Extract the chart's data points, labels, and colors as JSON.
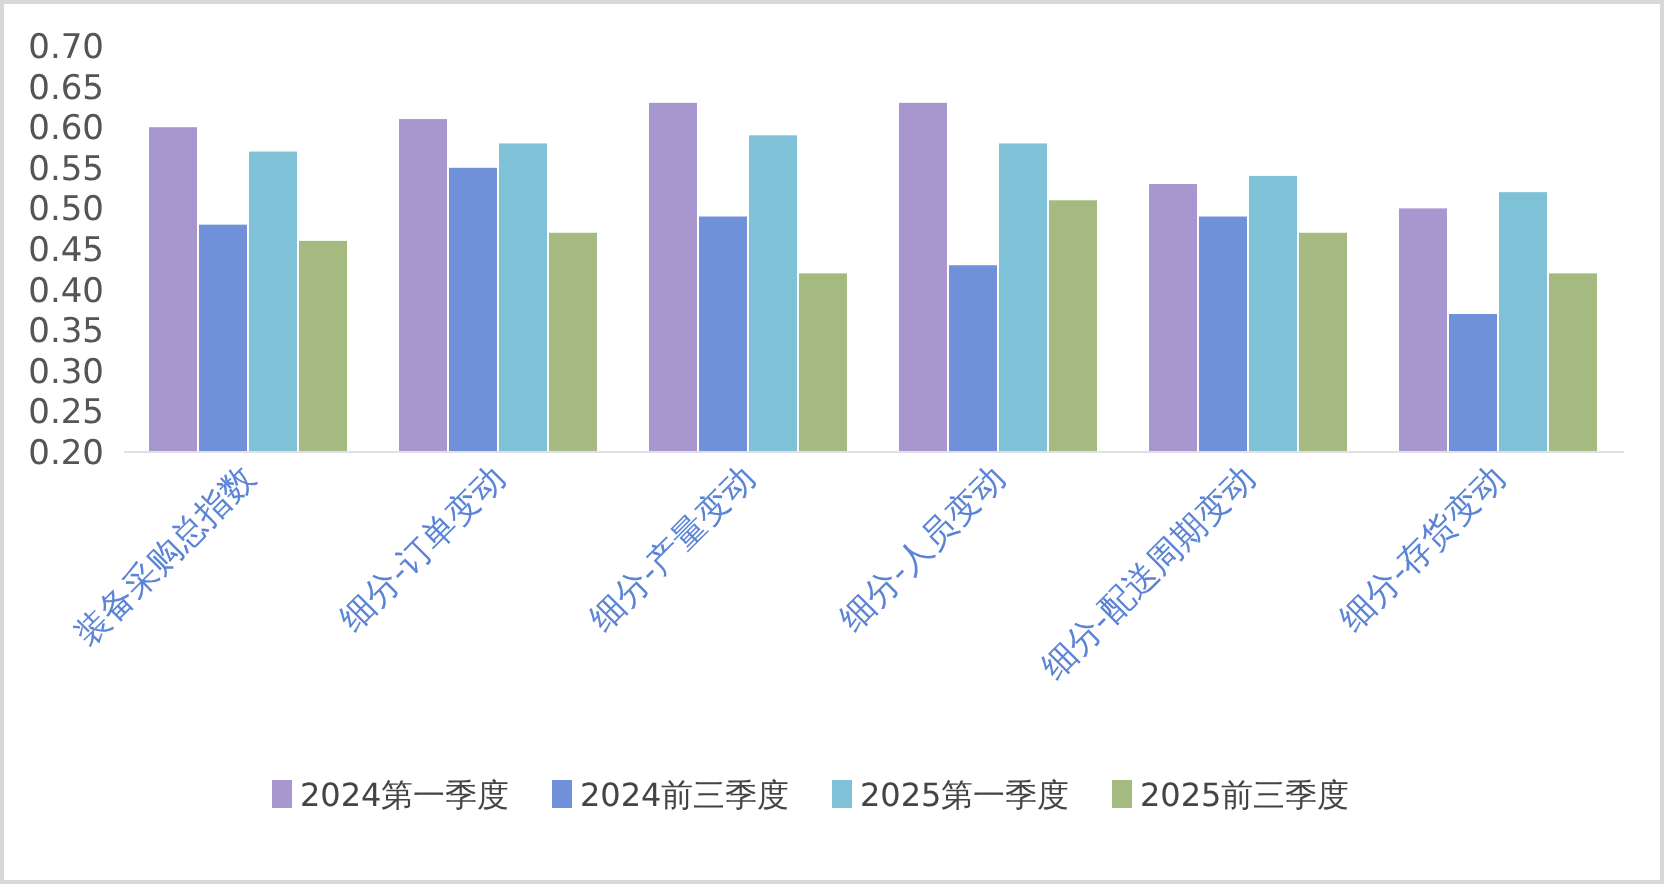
{
  "chart_data": {
    "type": "bar",
    "categories": [
      "装备采购总指数",
      "细分-订单变动",
      "细分-产量变动",
      "细分-人员变动",
      "细分-配送周期变动",
      "细分-存货变动"
    ],
    "series": [
      {
        "name": "2024第一季度",
        "color": "#a896cf",
        "values": [
          0.6,
          0.61,
          0.63,
          0.63,
          0.53,
          0.5
        ]
      },
      {
        "name": "2024前三季度",
        "color": "#7091d9",
        "values": [
          0.48,
          0.55,
          0.49,
          0.43,
          0.49,
          0.37
        ]
      },
      {
        "name": "2025第一季度",
        "color": "#7fc1d6",
        "values": [
          0.57,
          0.58,
          0.59,
          0.58,
          0.54,
          0.52
        ]
      },
      {
        "name": "2025前三季度",
        "color": "#a5ba80",
        "values": [
          0.46,
          0.47,
          0.42,
          0.51,
          0.47,
          0.42
        ]
      }
    ],
    "ylim": [
      0.2,
      0.7
    ],
    "yticks": [
      {
        "value": 0.2,
        "label": "0.20"
      },
      {
        "value": 0.25,
        "label": "0.25"
      },
      {
        "value": 0.3,
        "label": "0.30"
      },
      {
        "value": 0.35,
        "label": "0.35"
      },
      {
        "value": 0.4,
        "label": "0.40"
      },
      {
        "value": 0.45,
        "label": "0.45"
      },
      {
        "value": 0.5,
        "label": "0.50"
      },
      {
        "value": 0.55,
        "label": "0.55"
      },
      {
        "value": 0.6,
        "label": "0.60"
      },
      {
        "value": 0.65,
        "label": "0.65"
      },
      {
        "value": 0.7,
        "label": "0.70"
      }
    ],
    "grid": false,
    "legend": "bottom"
  }
}
